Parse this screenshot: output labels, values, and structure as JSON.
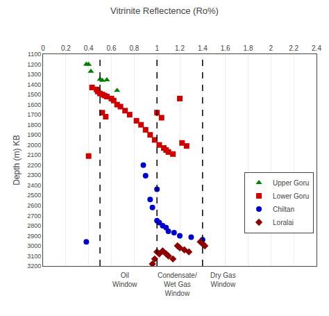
{
  "chart_data": {
    "type": "scatter",
    "title": "Vitrinite Reflectence (Ro%)",
    "ylabel": "Depth (m) KB",
    "xlim": [
      0,
      2.4
    ],
    "ylim": [
      3200,
      1100
    ],
    "xticks": [
      0,
      0.2,
      0.4,
      0.6,
      0.8,
      1,
      1.2,
      1.4,
      1.6,
      1.8,
      2,
      2.2,
      2.4
    ],
    "yticks": [
      1100,
      1200,
      1300,
      1400,
      1500,
      1600,
      1700,
      1800,
      1900,
      2000,
      2100,
      2200,
      2300,
      2400,
      2500,
      2600,
      2700,
      2800,
      2900,
      3000,
      3100,
      3200
    ],
    "grid": "x",
    "legend": "lower right",
    "series": [
      {
        "name": "Upper Goru",
        "color": "#008000",
        "marker": "triangle",
        "x": [
          0.38,
          0.4,
          0.42,
          0.5,
          0.52,
          0.56,
          0.65
        ],
        "values": [
          1200,
          1202,
          1270,
          1350,
          1360,
          1355,
          1460
        ]
      },
      {
        "name": "Lower Goru",
        "color": "#CC0000",
        "marker": "square",
        "x": [
          0.43,
          0.47,
          0.48,
          0.5,
          0.52,
          0.54,
          0.56,
          0.6,
          0.62,
          0.65,
          0.68,
          0.72,
          0.76,
          0.82,
          0.86,
          0.9,
          0.94,
          0.98,
          1.02,
          1.06,
          1.08,
          1.1,
          1.14,
          1.2,
          1.22,
          1.26,
          0.4,
          0.52,
          0.55,
          1.0,
          1.04
        ],
        "values": [
          1430,
          1450,
          1470,
          1490,
          1500,
          1510,
          1520,
          1540,
          1560,
          1600,
          1620,
          1660,
          1700,
          1760,
          1800,
          1850,
          1900,
          1950,
          2000,
          2030,
          2050,
          2070,
          2090,
          1540,
          1980,
          2010,
          2110,
          1680,
          1720,
          1680,
          1730
        ]
      },
      {
        "name": "Chiltan",
        "color": "#0000CC",
        "marker": "circle",
        "x": [
          0.38,
          0.88,
          0.9,
          0.94,
          0.96,
          1.0,
          1.0,
          1.02,
          1.05,
          1.08,
          1.1,
          1.15,
          1.2,
          1.3,
          1.4
        ],
        "values": [
          2960,
          2200,
          2305,
          2540,
          2620,
          2440,
          2750,
          2770,
          2800,
          2820,
          2855,
          2870,
          2900,
          2915,
          2940
        ]
      },
      {
        "name": "Loralai",
        "color": "#8B0000",
        "marker": "diamond",
        "x": [
          0.96,
          0.98,
          1.0,
          1.02,
          1.05,
          1.08,
          1.1,
          1.14,
          1.18,
          1.2,
          1.24,
          1.28,
          1.38,
          1.4,
          1.42
        ],
        "values": [
          3180,
          3130,
          3060,
          3080,
          3050,
          3080,
          3100,
          3130,
          3000,
          3020,
          3040,
          3060,
          2960,
          2980,
          3000
        ]
      }
    ],
    "vertical_lines": {
      "x": [
        0.5,
        1.0,
        1.4
      ],
      "line_style": "dashed",
      "color": "black"
    },
    "annotations": [
      {
        "text": "Oil\nWindow",
        "x": 0.72
      },
      {
        "text": "Condensate/\nWet Gas\nWindow",
        "x": 1.18
      },
      {
        "text": "Dry Gas\nWindow",
        "x": 1.58
      }
    ]
  }
}
